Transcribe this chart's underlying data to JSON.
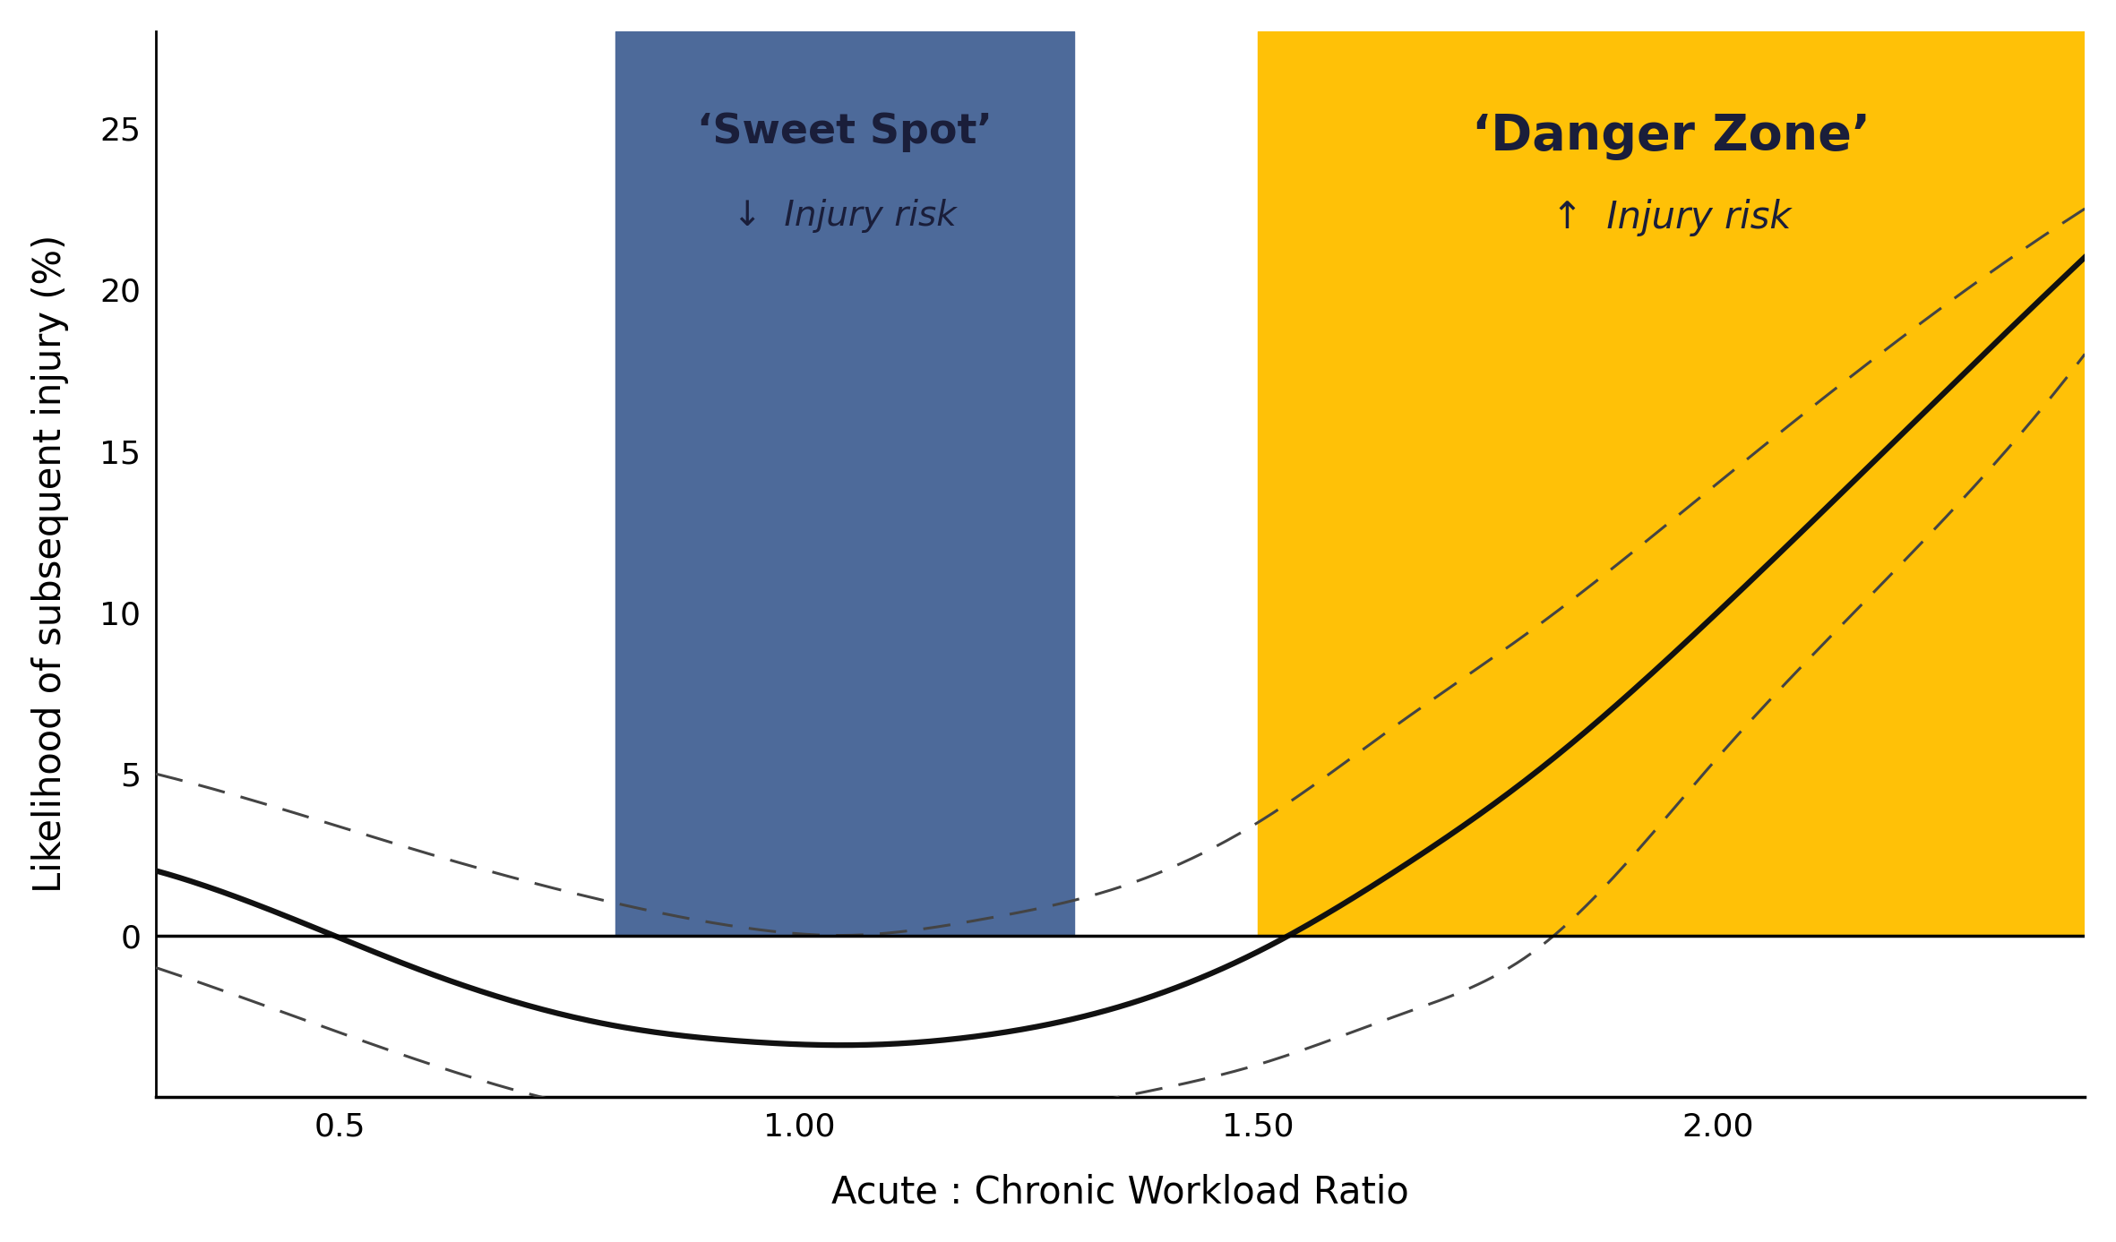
{
  "xlim": [
    0.3,
    2.4
  ],
  "ylim": [
    -5,
    28
  ],
  "xticks": [
    0.5,
    1.0,
    1.5,
    2.0
  ],
  "yticks": [
    0,
    5,
    10,
    15,
    20,
    25
  ],
  "xlabel": "Acute : Chronic Workload Ratio",
  "ylabel": "Likelihood of subsequent injury (%)",
  "blue_zone": [
    0.8,
    1.3
  ],
  "yellow_zone": [
    1.5,
    2.4
  ],
  "blue_color": "#4D6A9A",
  "yellow_color": "#FFC107",
  "sweet_spot_label": "‘Sweet Spot’",
  "sweet_spot_sub": "↓  Injury risk",
  "danger_zone_label": "‘Danger Zone’",
  "danger_zone_sub": "↑  Injury risk",
  "background_color": "#ffffff",
  "curve_color": "#111111",
  "ci_color": "#444444",
  "main_pts_x": [
    0.3,
    0.45,
    0.6,
    0.8,
    0.95,
    1.05,
    1.2,
    1.35,
    1.5,
    1.65,
    1.8,
    2.0,
    2.2,
    2.4
  ],
  "main_pts_y": [
    2.0,
    0.5,
    -1.2,
    -2.8,
    -3.3,
    -3.4,
    -3.1,
    -2.2,
    -0.5,
    2.0,
    5.0,
    10.0,
    15.5,
    21.0
  ],
  "upper_pts_x": [
    0.3,
    0.45,
    0.6,
    0.8,
    0.95,
    1.05,
    1.2,
    1.35,
    1.5,
    1.65,
    1.8,
    2.0,
    2.2,
    2.4
  ],
  "upper_pts_y": [
    5.0,
    3.8,
    2.5,
    1.0,
    0.2,
    0.0,
    0.5,
    1.5,
    3.5,
    6.5,
    9.5,
    14.0,
    18.5,
    22.5
  ],
  "lower_pts_x": [
    0.3,
    0.45,
    0.6,
    0.8,
    0.95,
    1.05,
    1.2,
    1.35,
    1.5,
    1.65,
    1.8,
    2.0,
    2.2,
    2.4
  ],
  "lower_pts_y": [
    -1.0,
    -2.5,
    -4.0,
    -5.5,
    -6.0,
    -6.2,
    -5.8,
    -5.0,
    -4.0,
    -2.5,
    -0.5,
    5.5,
    11.5,
    18.0
  ]
}
